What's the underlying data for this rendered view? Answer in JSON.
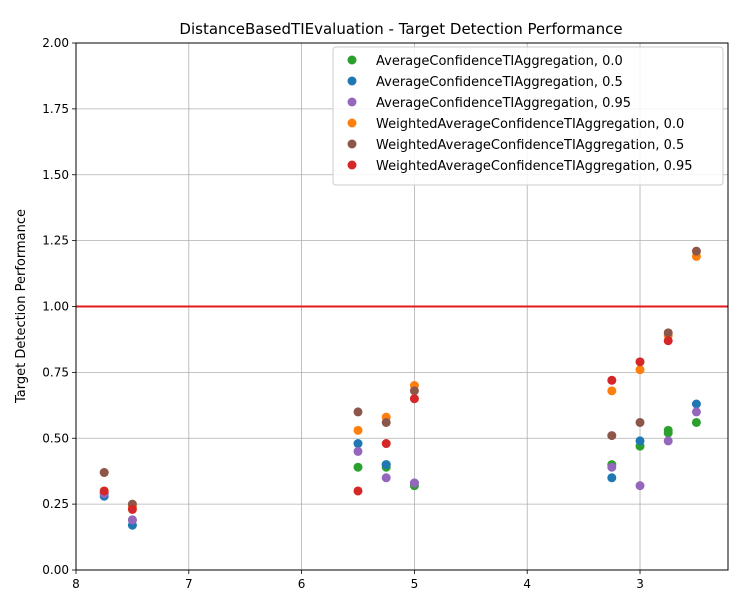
{
  "chart_data": {
    "type": "scatter",
    "title": "DistanceBasedTIEvaluation - Target Detection Performance",
    "xlabel": "",
    "ylabel": "Target Detection Performance",
    "xlim": [
      8.0,
      2.22
    ],
    "ylim": [
      0.0,
      2.0
    ],
    "x_inverted": true,
    "xticks": [
      8,
      7,
      6,
      5,
      4,
      3
    ],
    "yticks": [
      "0.00",
      "0.25",
      "0.50",
      "0.75",
      "1.00",
      "1.25",
      "1.50",
      "1.75",
      "2.00"
    ],
    "grid": true,
    "legend_position": "top-right",
    "reference_line": {
      "y": 1.0,
      "color": "#e31a1c"
    },
    "series": [
      {
        "name": "AverageConfidenceTIAggregation, 0.0",
        "color": "#2ca02c",
        "points": [
          [
            7.75,
            0.29
          ],
          [
            7.5,
            0.19
          ],
          [
            5.5,
            0.39
          ],
          [
            5.25,
            0.4
          ],
          [
            5.25,
            0.39
          ],
          [
            5.0,
            0.32
          ],
          [
            3.25,
            0.4
          ],
          [
            3.0,
            0.47
          ],
          [
            2.75,
            0.53
          ],
          [
            2.75,
            0.52
          ],
          [
            2.5,
            0.56
          ]
        ]
      },
      {
        "name": "AverageConfidenceTIAggregation, 0.5",
        "color": "#1f77b4",
        "points": [
          [
            7.75,
            0.28
          ],
          [
            7.5,
            0.17
          ],
          [
            5.5,
            0.48
          ],
          [
            5.25,
            0.4
          ],
          [
            5.0,
            0.33
          ],
          [
            3.25,
            0.35
          ],
          [
            3.0,
            0.49
          ],
          [
            2.5,
            0.63
          ]
        ]
      },
      {
        "name": "AverageConfidenceTIAggregation, 0.95",
        "color": "#9467bd",
        "points": [
          [
            7.75,
            0.29
          ],
          [
            7.5,
            0.19
          ],
          [
            5.5,
            0.45
          ],
          [
            5.25,
            0.35
          ],
          [
            5.0,
            0.33
          ],
          [
            3.25,
            0.39
          ],
          [
            3.0,
            0.32
          ],
          [
            2.75,
            0.49
          ],
          [
            2.5,
            0.6
          ]
        ]
      },
      {
        "name": "WeightedAverageConfidenceTIAggregation, 0.0",
        "color": "#ff7f0e",
        "points": [
          [
            7.75,
            0.37
          ],
          [
            7.5,
            0.24
          ],
          [
            5.5,
            0.53
          ],
          [
            5.25,
            0.58
          ],
          [
            5.0,
            0.7
          ],
          [
            3.25,
            0.68
          ],
          [
            3.0,
            0.76
          ],
          [
            2.75,
            0.89
          ],
          [
            2.5,
            1.19
          ]
        ]
      },
      {
        "name": "WeightedAverageConfidenceTIAggregation, 0.5",
        "color": "#8c564b",
        "points": [
          [
            7.75,
            0.37
          ],
          [
            7.5,
            0.25
          ],
          [
            5.5,
            0.6
          ],
          [
            5.25,
            0.56
          ],
          [
            5.0,
            0.68
          ],
          [
            3.25,
            0.51
          ],
          [
            3.0,
            0.56
          ],
          [
            2.75,
            0.9
          ],
          [
            2.5,
            1.21
          ]
        ]
      },
      {
        "name": "WeightedAverageConfidenceTIAggregation, 0.95",
        "color": "#d62728",
        "points": [
          [
            7.75,
            0.3
          ],
          [
            7.5,
            0.23
          ],
          [
            5.5,
            0.3
          ],
          [
            5.25,
            0.48
          ],
          [
            5.0,
            0.65
          ],
          [
            3.25,
            0.72
          ],
          [
            3.0,
            0.79
          ],
          [
            2.75,
            0.87
          ]
        ]
      }
    ]
  }
}
